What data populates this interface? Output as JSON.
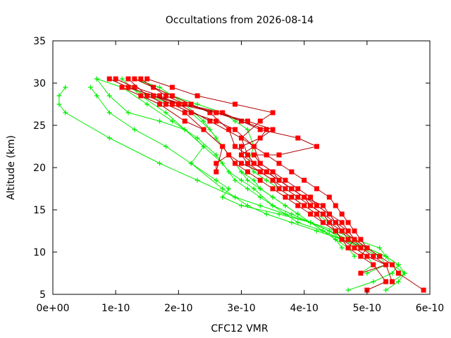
{
  "chart_data": {
    "type": "line",
    "title": "Occultations from 2026-08-14",
    "xlabel": "CFC12 VMR",
    "ylabel": "Altitude (km)",
    "xlim": [
      0,
      6e-10
    ],
    "ylim": [
      5,
      35
    ],
    "grid": false,
    "legend": "none",
    "x_tick_labels": [
      "0e+00",
      "1e-10",
      "2e-10",
      "3e-10",
      "4e-10",
      "5e-10",
      "6e-10"
    ],
    "x_tick_values": [
      0,
      1e-10,
      2e-10,
      3e-10,
      4e-10,
      5e-10,
      6e-10
    ],
    "y_tick_labels": [
      "5",
      "10",
      "15",
      "20",
      "25",
      "30",
      "35"
    ],
    "y_tick_values": [
      5,
      10,
      15,
      20,
      25,
      30,
      35
    ],
    "colors": {
      "red_series": "#ff0000",
      "red_line": "#b00000",
      "green_series": "#00ee00"
    },
    "series": [
      {
        "color": "red",
        "marker": "square",
        "x": [
          5.9e-10,
          5.5e-10,
          5.4e-10,
          5.2e-10,
          5e-10,
          4.9e-10,
          4.8e-10,
          4.7e-10,
          4.6e-10,
          4.5e-10,
          4.4e-10,
          4.2e-10,
          4e-10,
          3.8e-10,
          3.6e-10,
          3.4e-10,
          3e-10,
          2.5e-10,
          2e-10,
          1.7e-10,
          1.3e-10,
          1e-10
        ],
        "y": [
          5.5,
          7.5,
          8.5,
          9.5,
          10.5,
          11.5,
          12.5,
          13.5,
          14.5,
          15.5,
          16.5,
          17.5,
          18.5,
          19.5,
          20.5,
          21.5,
          23.5,
          25.5,
          27.5,
          28.5,
          29.5,
          30.5
        ]
      },
      {
        "color": "red",
        "marker": "square",
        "x": [
          5e-10,
          5.3e-10,
          5.1e-10,
          4.9e-10,
          4.7e-10,
          4.6e-10,
          4.5e-10,
          4.3e-10,
          4.1e-10,
          3.9e-10,
          3.7e-10,
          3.5e-10,
          3.3e-10,
          3.1e-10,
          2.9e-10,
          2.7e-10,
          2.4e-10,
          2.1e-10,
          1.8e-10,
          1.5e-10,
          1.2e-10
        ],
        "y": [
          5.5,
          6.5,
          8.5,
          9.5,
          10.5,
          11.5,
          12.5,
          13.5,
          14.5,
          15.5,
          16.5,
          17.5,
          18.5,
          19.5,
          20.5,
          22.5,
          24.5,
          26.5,
          27.5,
          28.5,
          30.5
        ]
      },
      {
        "color": "red",
        "marker": "square",
        "x": [
          4.9e-10,
          5.3e-10,
          5e-10,
          4.8e-10,
          4.6e-10,
          4.5e-10,
          4.4e-10,
          4.3e-10,
          4.1e-10,
          4e-10,
          3.8e-10,
          3.6e-10,
          3.4e-10,
          3.2e-10,
          3.1e-10,
          2.9e-10,
          2.8e-10,
          2.5e-10,
          2.2e-10,
          1.9e-10,
          1.6e-10,
          1.3e-10
        ],
        "y": [
          7.5,
          8.5,
          9.5,
          10.5,
          11.5,
          12.5,
          13.5,
          14.5,
          15.5,
          16.5,
          17.5,
          18.5,
          19.5,
          20.5,
          21.5,
          22.5,
          24.5,
          26.5,
          27.5,
          28.5,
          29.5,
          30.5
        ]
      },
      {
        "color": "red",
        "marker": "square",
        "x": [
          5.4e-10,
          5.3e-10,
          5.1e-10,
          4.9e-10,
          4.7e-10,
          4.6e-10,
          4.5e-10,
          4.4e-10,
          4.2e-10,
          4.1e-10,
          3.9e-10,
          3.7e-10,
          3.5e-10,
          3.3e-10,
          3.2e-10,
          3.4e-10,
          3e-10,
          2.6e-10,
          2.1e-10,
          1.8e-10,
          1.4e-10
        ],
        "y": [
          6.5,
          8.5,
          9.5,
          10.5,
          11.5,
          12.5,
          13.5,
          14.5,
          15.5,
          16.5,
          17.5,
          18.5,
          19.5,
          20.5,
          22.5,
          24.5,
          25.5,
          26.5,
          27.5,
          28.5,
          30.5
        ]
      },
      {
        "color": "red",
        "marker": "square",
        "x": [
          4.7e-10,
          4.6e-10,
          4.5e-10,
          4.3e-10,
          4.2e-10,
          4e-10,
          3.8e-10,
          3.6e-10,
          3.5e-10,
          3.3e-10,
          3.1e-10,
          3e-10,
          3.2e-10,
          2.9e-10,
          2.6e-10,
          2.2e-10,
          1.9e-10,
          1.6e-10,
          1.2e-10,
          9e-11
        ],
        "y": [
          10.5,
          11.5,
          12.5,
          13.5,
          14.5,
          15.5,
          16.5,
          17.5,
          18.5,
          19.5,
          20.5,
          21.5,
          22.5,
          24.5,
          25.5,
          26.5,
          27.5,
          28.5,
          29.5,
          30.5
        ]
      },
      {
        "color": "red",
        "marker": "square",
        "x": [
          5.2e-10,
          5e-10,
          4.8e-10,
          4.6e-10,
          4.4e-10,
          4.3e-10,
          4.1e-10,
          3.9e-10,
          3.7e-10,
          3.5e-10,
          3.3e-10,
          3e-10,
          2.8e-10,
          2.6e-10,
          2.6e-10,
          2.7e-10,
          2.4e-10,
          2.1e-10,
          1.7e-10,
          1.4e-10,
          1.1e-10
        ],
        "y": [
          9.5,
          10.5,
          11.5,
          12.5,
          13.5,
          14.5,
          15.5,
          16.5,
          17.5,
          18.5,
          19.5,
          20.5,
          21.5,
          20.5,
          19.5,
          22.5,
          24.5,
          25.5,
          27.5,
          28.5,
          29.5
        ]
      },
      {
        "color": "red",
        "marker": "square",
        "x": [
          4.9e-10,
          5e-10,
          4.8e-10,
          4.6e-10,
          4.5e-10,
          4.3e-10,
          4.1e-10,
          4e-10,
          3.8e-10,
          3.6e-10,
          3.4e-10,
          3.2e-10,
          3.1e-10,
          3e-10,
          3.3e-10,
          3.5e-10,
          2.9e-10,
          2.3e-10,
          1.9e-10,
          1.5e-10
        ],
        "y": [
          9.5,
          10.5,
          11.5,
          12.5,
          13.5,
          14.5,
          15.5,
          16.5,
          17.5,
          18.5,
          19.5,
          20.5,
          21.5,
          23.5,
          25.5,
          26.5,
          27.5,
          28.5,
          29.5,
          30.5
        ]
      },
      {
        "color": "red",
        "marker": "square",
        "x": [
          4.7e-10,
          4.8e-10,
          4.7e-10,
          4.5e-10,
          4.4e-10,
          4.3e-10,
          4e-10,
          3.8e-10,
          3.6e-10,
          3.5e-10,
          3.3e-10,
          3.2e-10,
          3.4e-10,
          3.6e-10,
          4.2e-10,
          3.9e-10,
          3.3e-10,
          2.7e-10,
          2.1e-10,
          1.6e-10,
          1.2e-10
        ],
        "y": [
          10.5,
          11.5,
          12.5,
          13.5,
          14.5,
          15.5,
          16.5,
          17.5,
          18.5,
          19.5,
          20.5,
          21.5,
          21.5,
          21.5,
          22.5,
          23.5,
          24.5,
          26.5,
          27.5,
          28.5,
          29.5
        ]
      },
      {
        "color": "red",
        "marker": "square",
        "x": [
          4.9e-10,
          4.8e-10,
          4.7e-10,
          4.6e-10,
          4.4e-10,
          4.2e-10,
          4e-10,
          3.8e-10,
          3.6e-10,
          3.4e-10,
          3.2e-10,
          3e-10,
          3e-10,
          3.3e-10,
          3.5e-10,
          3.1e-10,
          2.6e-10,
          2e-10,
          1.6e-10
        ],
        "y": [
          10.5,
          11.5,
          12.5,
          13.5,
          14.5,
          15.5,
          16.5,
          17.5,
          18.5,
          19.5,
          20.5,
          21.5,
          22.5,
          23.5,
          24.5,
          25.5,
          26.5,
          27.5,
          28.5
        ]
      },
      {
        "color": "green",
        "marker": "plus",
        "x": [
          4.7e-10,
          5.1e-10,
          5.4e-10,
          5.5e-10,
          5.3e-10,
          5e-10,
          4.7e-10,
          4.4e-10,
          4.1e-10,
          3.7e-10,
          3.3e-10,
          2.9e-10,
          2.3e-10,
          1.7e-10,
          9e-11,
          2e-11,
          1e-11,
          1e-11,
          2e-11
        ],
        "y": [
          5.5,
          6.5,
          7.5,
          8.5,
          9.5,
          10.5,
          11.5,
          12.5,
          13.5,
          14.5,
          15.5,
          16.5,
          18.5,
          20.5,
          23.5,
          26.5,
          27.5,
          28.5,
          29.5
        ]
      },
      {
        "color": "green",
        "marker": "plus",
        "x": [
          5.3e-10,
          5.5e-10,
          5.6e-10,
          5.4e-10,
          5.2e-10,
          4.8e-10,
          4.5e-10,
          4.1e-10,
          3.6e-10,
          3e-10,
          2.7e-10,
          2.8e-10,
          2.6e-10,
          2.2e-10,
          1.8e-10,
          1.3e-10,
          9e-11,
          7e-11,
          6e-11
        ],
        "y": [
          5.5,
          6.5,
          7.5,
          8.5,
          10.5,
          11.5,
          12.5,
          13.5,
          14.5,
          15.5,
          16.5,
          17.5,
          18.5,
          20.5,
          22.5,
          24.5,
          26.5,
          28.5,
          29.5
        ]
      },
      {
        "color": "green",
        "marker": "plus",
        "x": [
          5.4e-10,
          5.6e-10,
          5.5e-10,
          5.3e-10,
          5e-10,
          4.6e-10,
          4.2e-10,
          3.8e-10,
          3.4e-10,
          3.1e-10,
          2.9e-10,
          2.7e-10,
          2.2e-10,
          2.4e-10,
          2.1e-10,
          1.7e-10,
          1.2e-10,
          9e-11,
          7e-11
        ],
        "y": [
          6.5,
          7.5,
          8.5,
          9.5,
          10.5,
          11.5,
          12.5,
          13.5,
          14.5,
          15.5,
          16.5,
          17.5,
          20.5,
          22.5,
          24.5,
          25.5,
          26.5,
          28.5,
          30.5
        ]
      },
      {
        "color": "green",
        "marker": "plus",
        "x": [
          5e-10,
          5.3e-10,
          5.2e-10,
          4.9e-10,
          4.6e-10,
          4.3e-10,
          3.9e-10,
          3.5e-10,
          3.2e-10,
          3e-10,
          2.8e-10,
          2.6e-10,
          2.3e-10,
          1.9e-10,
          1.5e-10,
          1.1e-10,
          7e-11
        ],
        "y": [
          7.5,
          8.5,
          9.5,
          10.5,
          11.5,
          12.5,
          13.5,
          15.5,
          17.5,
          18.5,
          19.5,
          21.5,
          23.5,
          25.5,
          27.5,
          29.5,
          30.5
        ]
      },
      {
        "color": "green",
        "marker": "plus",
        "x": [
          4.9e-10,
          5.1e-10,
          5e-10,
          4.8e-10,
          4.6e-10,
          4.4e-10,
          4.1e-10,
          3.8e-10,
          3.5e-10,
          3.3e-10,
          3.1e-10,
          2.9e-10,
          2.7e-10,
          2.4e-10,
          2.1e-10,
          1.8e-10,
          1.4e-10,
          1.1e-10
        ],
        "y": [
          7.5,
          8.5,
          9.5,
          10.5,
          11.5,
          12.5,
          13.5,
          14.5,
          15.5,
          16.5,
          17.5,
          18.5,
          20.5,
          22.5,
          24.5,
          26.5,
          28.5,
          30.5
        ]
      },
      {
        "color": "green",
        "marker": "plus",
        "x": [
          4.8e-10,
          4.7e-10,
          4.5e-10,
          4.3e-10,
          4.1e-10,
          3.9e-10,
          3.7e-10,
          3.5e-10,
          3.3e-10,
          3.2e-10,
          3e-10,
          2.8e-10,
          2.6e-10,
          2.4e-10,
          2.1e-10,
          1.7e-10,
          1.3e-10
        ],
        "y": [
          9.5,
          10.5,
          11.5,
          12.5,
          13.5,
          14.5,
          15.5,
          16.5,
          17.5,
          18.5,
          19.5,
          21.5,
          23.5,
          25.5,
          27.5,
          29.5,
          30.5
        ]
      },
      {
        "color": "green",
        "marker": "plus",
        "x": [
          4.6e-10,
          4.5e-10,
          4.3e-10,
          4.1e-10,
          3.9e-10,
          3.7e-10,
          3.5e-10,
          3.3e-10,
          3.1e-10,
          3e-10,
          2.9e-10,
          2.7e-10,
          2.5e-10,
          2.2e-10,
          1.9e-10,
          1.5e-10,
          1.2e-10
        ],
        "y": [
          10.5,
          11.5,
          12.5,
          13.5,
          14.5,
          15.5,
          16.5,
          17.5,
          18.5,
          19.5,
          20.5,
          22.5,
          24.5,
          26.5,
          27.5,
          28.5,
          29.5
        ]
      },
      {
        "color": "green",
        "marker": "plus",
        "x": [
          4.5e-10,
          4.4e-10,
          4.2e-10,
          4e-10,
          3.8e-10,
          3.6e-10,
          3.4e-10,
          3.2e-10,
          3.1e-10,
          3.2e-10,
          3.1e-10,
          2.9e-10,
          2.7e-10,
          2.3e-10,
          1.9e-10,
          1.6e-10,
          1.3e-10
        ],
        "y": [
          12.5,
          13.5,
          14.5,
          15.5,
          16.5,
          17.5,
          18.5,
          19.5,
          20.5,
          22.5,
          24.5,
          25.5,
          26.5,
          27.5,
          28.5,
          29.5,
          30.5
        ]
      }
    ]
  }
}
